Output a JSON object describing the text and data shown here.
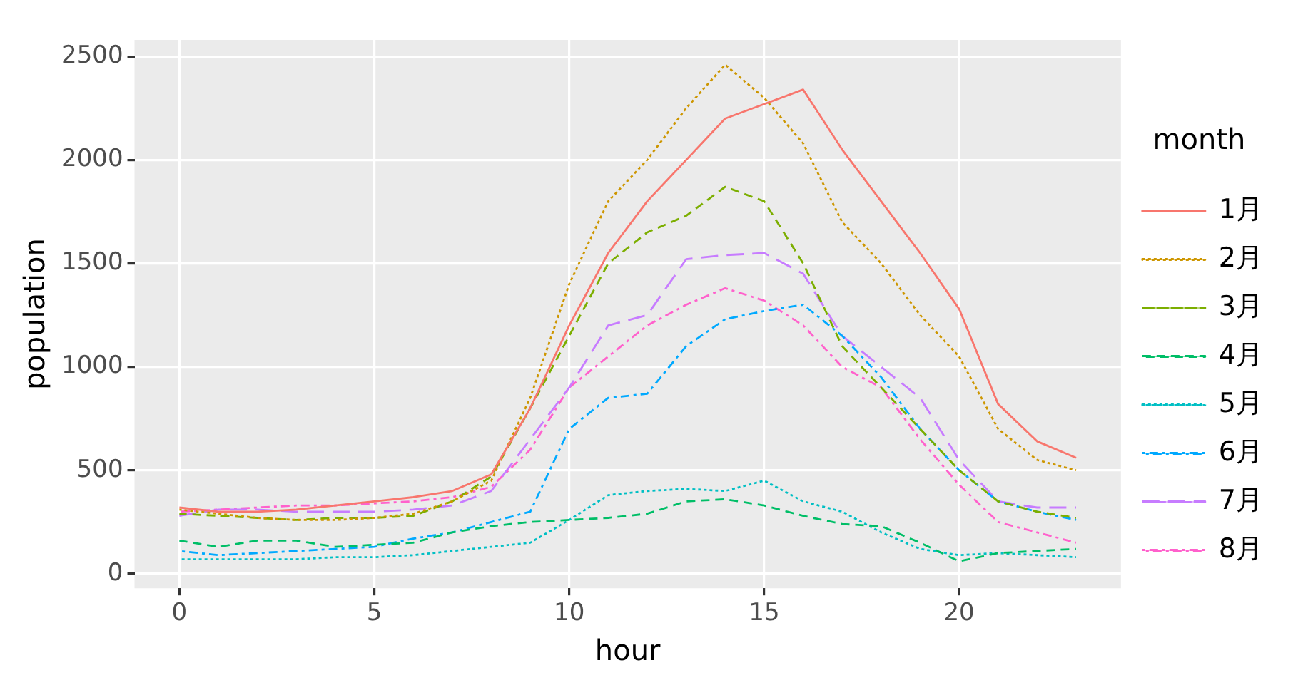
{
  "chart_data": {
    "type": "line",
    "xlabel": "hour",
    "ylabel": "population",
    "legend_title": "month",
    "legend": "right",
    "grid": true,
    "marker": "none",
    "x": [
      0,
      1,
      2,
      3,
      4,
      5,
      6,
      7,
      8,
      9,
      10,
      11,
      12,
      13,
      14,
      15,
      16,
      17,
      18,
      19,
      20,
      21,
      22,
      23
    ],
    "xlim": [
      -1.15,
      24.15
    ],
    "xticks": [
      0,
      5,
      10,
      15,
      20
    ],
    "ylim": [
      -70,
      2580
    ],
    "yticks": [
      0,
      500,
      1000,
      1500,
      2000,
      2500
    ],
    "series": [
      {
        "name": "1月",
        "color": "#f8766d",
        "line_style": "solid",
        "values": [
          320,
          300,
          300,
          310,
          330,
          350,
          370,
          400,
          480,
          800,
          1200,
          1550,
          1800,
          2000,
          2200,
          2270,
          2340,
          2050,
          1800,
          1550,
          1280,
          820,
          640,
          560
        ]
      },
      {
        "name": "2月",
        "color": "#cd9600",
        "line_style": "dotted",
        "values": [
          310,
          290,
          270,
          260,
          260,
          270,
          290,
          350,
          450,
          850,
          1400,
          1800,
          2000,
          2250,
          2460,
          2300,
          2080,
          1700,
          1500,
          1250,
          1050,
          700,
          550,
          500
        ]
      },
      {
        "name": "3月",
        "color": "#7cae00",
        "line_style": "dashed",
        "values": [
          290,
          280,
          270,
          260,
          270,
          270,
          280,
          350,
          470,
          800,
          1150,
          1500,
          1650,
          1730,
          1870,
          1800,
          1500,
          1100,
          900,
          700,
          500,
          350,
          300,
          270
        ]
      },
      {
        "name": "4月",
        "color": "#00be67",
        "line_style": "dashed",
        "values": [
          160,
          130,
          160,
          160,
          130,
          140,
          150,
          200,
          230,
          250,
          260,
          270,
          290,
          350,
          360,
          330,
          280,
          240,
          230,
          150,
          60,
          100,
          110,
          120
        ]
      },
      {
        "name": "5月",
        "color": "#00bfc4",
        "line_style": "dotted",
        "values": [
          70,
          70,
          70,
          70,
          80,
          80,
          90,
          110,
          130,
          150,
          260,
          380,
          400,
          410,
          400,
          450,
          350,
          300,
          200,
          120,
          90,
          100,
          90,
          80
        ]
      },
      {
        "name": "6月",
        "color": "#00a9ff",
        "line_style": "dashdot",
        "values": [
          110,
          90,
          100,
          110,
          120,
          130,
          170,
          200,
          250,
          300,
          700,
          850,
          870,
          1100,
          1230,
          1270,
          1300,
          1150,
          950,
          700,
          500,
          350,
          300,
          260
        ]
      },
      {
        "name": "7月",
        "color": "#c77cff",
        "line_style": "longdash",
        "values": [
          280,
          310,
          310,
          300,
          300,
          300,
          310,
          330,
          400,
          650,
          900,
          1200,
          1250,
          1520,
          1540,
          1550,
          1450,
          1150,
          1000,
          850,
          550,
          350,
          320,
          320
        ]
      },
      {
        "name": "8月",
        "color": "#ff61cc",
        "line_style": "dashdot",
        "values": [
          300,
          310,
          320,
          330,
          330,
          340,
          350,
          370,
          420,
          600,
          900,
          1050,
          1200,
          1300,
          1380,
          1320,
          1200,
          1000,
          900,
          650,
          430,
          250,
          200,
          150
        ]
      }
    ]
  }
}
